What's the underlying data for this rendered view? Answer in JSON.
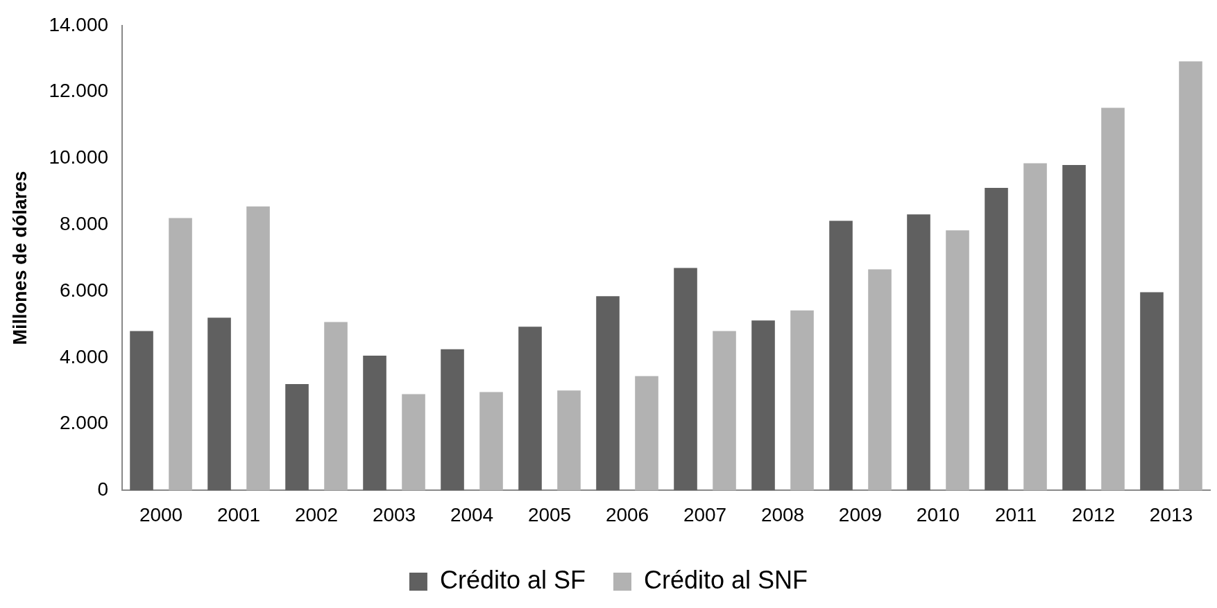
{
  "chart_data": {
    "type": "bar",
    "ylabel": "Millones de dólares",
    "categories": [
      "2000",
      "2001",
      "2002",
      "2003",
      "2004",
      "2005",
      "2006",
      "2007",
      "2008",
      "2009",
      "2010",
      "2011",
      "2012",
      "2013"
    ],
    "series": [
      {
        "name": "Crédito al SF",
        "color": "#606060",
        "values": [
          4800,
          5200,
          3200,
          4060,
          4250,
          4930,
          5850,
          6700,
          5120,
          8120,
          8310,
          9110,
          9800,
          5970
        ]
      },
      {
        "name": "Crédito al SNF",
        "color": "#b2b2b2",
        "values": [
          8200,
          8550,
          5070,
          2900,
          2960,
          3010,
          3440,
          4800,
          5420,
          6660,
          7830,
          9850,
          11520,
          12920
        ]
      }
    ],
    "ylim": [
      0,
      14000
    ],
    "yticks": [
      {
        "value": 0,
        "label": "0"
      },
      {
        "value": 2000,
        "label": "2.000"
      },
      {
        "value": 4000,
        "label": "4.000"
      },
      {
        "value": 6000,
        "label": "6.000"
      },
      {
        "value": 8000,
        "label": "8.000"
      },
      {
        "value": 10000,
        "label": "10.000"
      },
      {
        "value": 12000,
        "label": "12.000"
      },
      {
        "value": 14000,
        "label": "14.000"
      }
    ],
    "grid": false,
    "legend": "bottom"
  }
}
